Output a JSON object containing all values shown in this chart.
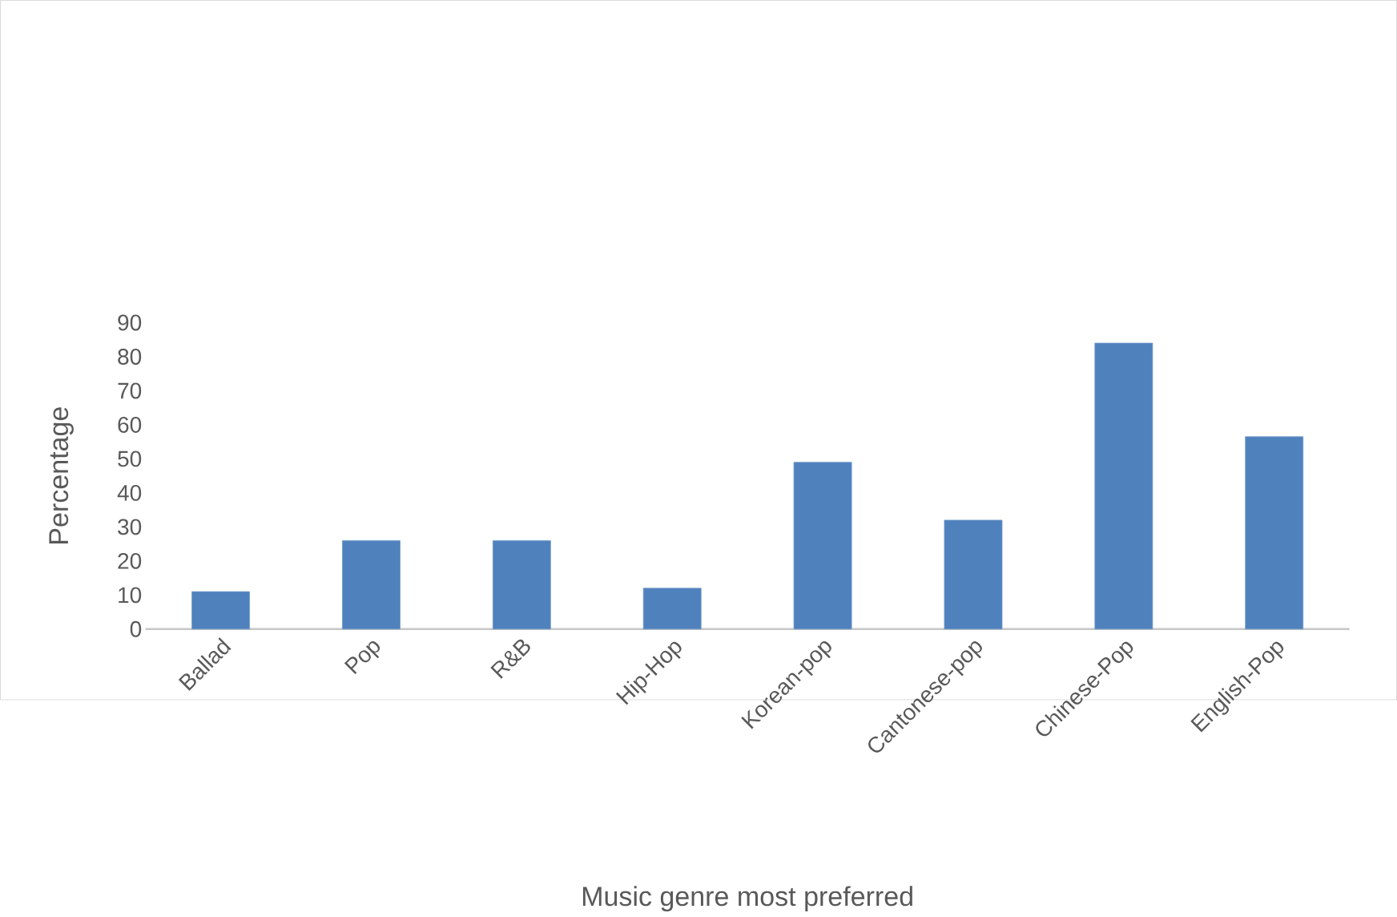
{
  "chart_data": {
    "type": "bar",
    "xlabel": "Music genre most preferred",
    "ylabel": "Percentage",
    "categories": [
      "Ballad",
      "Pop",
      "R&B",
      "Hip-Hop",
      "Korean-pop",
      "Cantonese-pop",
      "Chinese-Pop",
      "English-Pop"
    ],
    "values": [
      11,
      26,
      26,
      12,
      49,
      32,
      84,
      56.5
    ],
    "color": "#4f81bd",
    "ylim": [
      0,
      90
    ],
    "yticks": [
      0,
      10,
      20,
      30,
      40,
      50,
      60,
      70,
      80,
      90
    ]
  }
}
